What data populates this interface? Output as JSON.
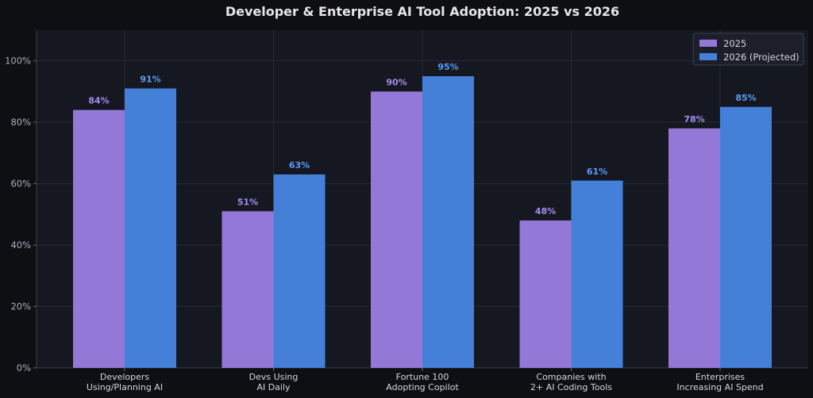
{
  "chart_data": {
    "type": "bar",
    "title": "Developer & Enterprise AI Tool Adoption: 2025 vs 2026",
    "xlabel": "",
    "ylabel": "",
    "categories": [
      [
        "Developers",
        "Using/Planning AI"
      ],
      [
        "Devs Using",
        "AI Daily"
      ],
      [
        "Fortune 100",
        "Adopting Copilot"
      ],
      [
        "Companies with",
        "2+ AI Coding Tools"
      ],
      [
        "Enterprises",
        "Increasing AI Spend"
      ]
    ],
    "series": [
      {
        "name": "2025",
        "color": "#9378d8",
        "label_color": "#a48cf0",
        "values": [
          84,
          51,
          90,
          48,
          78
        ],
        "labels": [
          "84%",
          "51%",
          "90%",
          "48%",
          "78%"
        ]
      },
      {
        "name": "2026 (Projected)",
        "color": "#4580d8",
        "label_color": "#5a9cf5",
        "values": [
          91,
          63,
          95,
          61,
          85
        ],
        "labels": [
          "91%",
          "63%",
          "95%",
          "61%",
          "85%"
        ]
      }
    ],
    "ylim": [
      0,
      110
    ],
    "yticks": [
      0,
      20,
      40,
      60,
      80,
      100
    ],
    "ytick_labels": [
      "0%",
      "20%",
      "40%",
      "60%",
      "80%",
      "100%"
    ],
    "grid": true,
    "legend_position": "top-right",
    "colors": {
      "background": "#0e0f13",
      "plot_background": "#161821",
      "grid": "#262a38",
      "axis": "#3a3f50"
    }
  }
}
